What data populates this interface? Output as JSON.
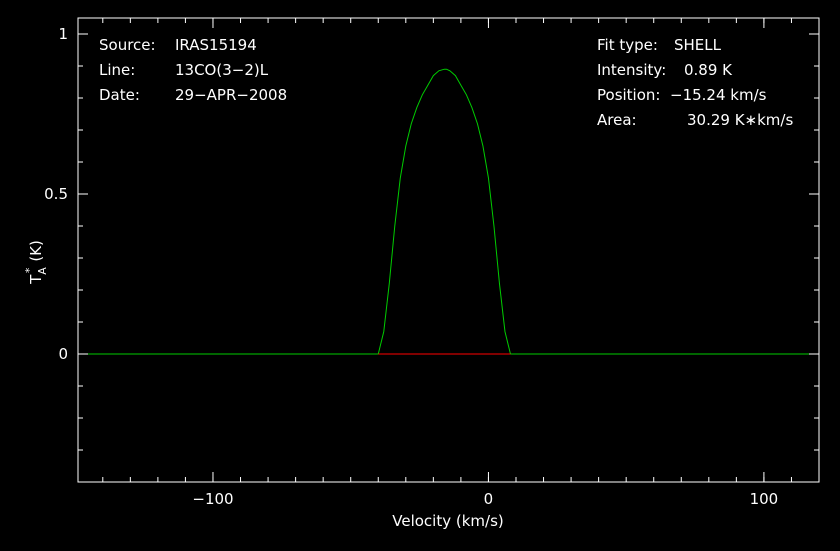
{
  "chart_data": {
    "type": "line",
    "xlabel": "Velocity (km/s)",
    "ylabel_main": "T",
    "ylabel_super": "*",
    "ylabel_sub": "A",
    "ylabel_unit": "(K)",
    "xlim": [
      -149,
      120
    ],
    "ylim": [
      -0.4,
      1.05
    ],
    "x_ticks": [
      {
        "value": -100,
        "label": "−100"
      },
      {
        "value": 0,
        "label": "0"
      },
      {
        "value": 100,
        "label": "100"
      }
    ],
    "y_ticks": [
      {
        "value": 0,
        "label": "0"
      },
      {
        "value": 0.5,
        "label": "0.5"
      },
      {
        "value": 1,
        "label": "1"
      }
    ],
    "x_minor_step": 10,
    "y_minor_step": 0.1,
    "grid": false,
    "info_left": [
      {
        "key": "Source:",
        "value": "IRAS15194"
      },
      {
        "key": "Line:",
        "value": "13CO(3−2)L"
      },
      {
        "key": "Date:",
        "value": "29−APR−2008"
      }
    ],
    "info_right": [
      {
        "key": "Fit type:",
        "value": "SHELL"
      },
      {
        "key": "Intensity:",
        "value": "0.89 K"
      },
      {
        "key": "Position:",
        "value": "−15.24 km/s"
      },
      {
        "key": "Area:",
        "value": "30.29 K∗km/s"
      }
    ],
    "fit": {
      "name": "SHELL",
      "center": -15.24,
      "peak": 0.89,
      "x": [
        -149,
        -40,
        -38,
        -36,
        -34,
        -32,
        -30,
        -28,
        -26,
        -24,
        -22,
        -20,
        -18,
        -16,
        -15.24,
        -14,
        -12,
        -10,
        -8,
        -6,
        -4,
        -2,
        0,
        2,
        4,
        6,
        8,
        120
      ],
      "y": [
        0,
        0,
        0.07,
        0.22,
        0.4,
        0.55,
        0.65,
        0.72,
        0.77,
        0.81,
        0.84,
        0.87,
        0.885,
        0.89,
        0.89,
        0.885,
        0.87,
        0.84,
        0.81,
        0.77,
        0.72,
        0.65,
        0.55,
        0.4,
        0.22,
        0.07,
        0,
        0
      ]
    },
    "baseline_window": [
      -40,
      8
    ],
    "noise_rms": 0.1,
    "series": [
      {
        "color": "#ffffff",
        "style": "histogram"
      },
      {
        "color": "#00cc00",
        "style": "line"
      },
      {
        "color": "#ff0000",
        "style": "line"
      }
    ]
  }
}
